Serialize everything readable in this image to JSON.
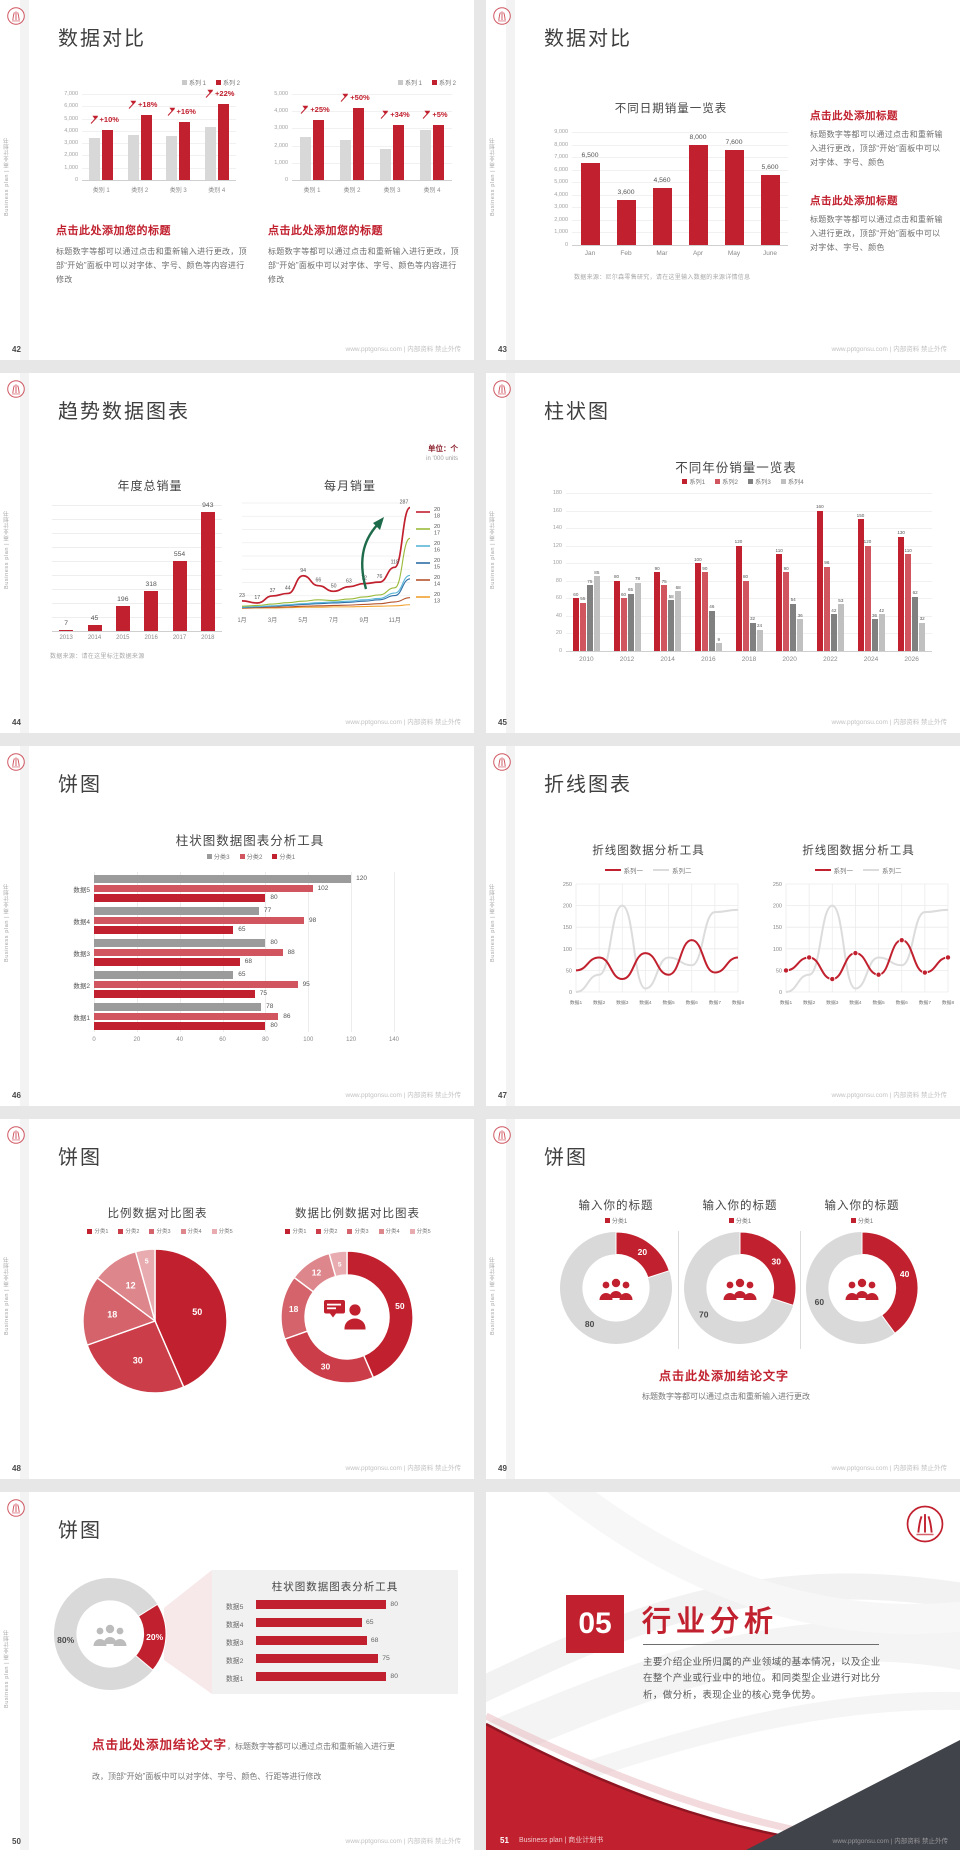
{
  "common": {
    "site": "www.pptgonsu.com | 内部资料 禁止外传",
    "sidebar": "Business plan | 商业计划书",
    "colors": {
      "red": "#c1202e",
      "red2": "#d0555e",
      "gray_bar": "#d8d8d8",
      "gray3": "#808080",
      "gray4": "#c0c0c0",
      "green_arrow": "#1d6b4a",
      "ring_gray": "#d9d9d9"
    }
  },
  "slides": {
    "s42": {
      "page_no": "42",
      "title": "数据对比",
      "chart_left": {
        "type": "pairbars",
        "legend": [
          "系列 1",
          "系列 2"
        ],
        "ymax": 7000,
        "yticks": [
          "7,000",
          "6,000",
          "5,000",
          "4,000",
          "3,000",
          "2,000",
          "1,000",
          "0"
        ],
        "categories": [
          "类别 1",
          "类别 2",
          "类别 3",
          "类别 4"
        ],
        "series": [
          {
            "name": "系列 1",
            "values": [
              3400,
              3700,
              3600,
              4300
            ]
          },
          {
            "name": "系列 2",
            "values": [
              4100,
              5300,
              4700,
              6200
            ]
          }
        ],
        "annotations": [
          "+10%",
          "+18%",
          "+16%",
          "+22%"
        ]
      },
      "chart_right": {
        "type": "pairbars",
        "legend": [
          "系列 1",
          "系列 2"
        ],
        "ymax": 5000,
        "yticks": [
          "5,000",
          "4,000",
          "3,000",
          "2,000",
          "1,000",
          "0"
        ],
        "categories": [
          "类别 1",
          "类别 2",
          "类别 3",
          "类别 4"
        ],
        "series": [
          {
            "name": "系列 1",
            "values": [
              2500,
              2300,
              1800,
              2900
            ]
          },
          {
            "name": "系列 2",
            "values": [
              3500,
              4200,
              3200,
              3200
            ]
          }
        ],
        "annotations": [
          "+25%",
          "+50%",
          "+34%",
          "+5%"
        ]
      },
      "block_left": {
        "heading": "点击此处添加您的标题",
        "body": "标题数字等都可以通过点击和重新输入进行更改，顶部“开始”面板中可以对字体、字号、颜色等内容进行修改"
      },
      "block_right": {
        "heading": "点击此处添加您的标题",
        "body": "标题数字等都可以通过点击和重新输入进行更改，顶部“开始”面板中可以对字体、字号、颜色等内容进行修改"
      }
    },
    "s43": {
      "page_no": "43",
      "title": "数据对比",
      "chart": {
        "type": "vbars",
        "title": "不同日期销量一览表",
        "ymax": 9000,
        "yticks": [
          "9,000",
          "8,000",
          "7,000",
          "6,000",
          "5,000",
          "4,000",
          "3,000",
          "2,000",
          "1,000",
          "0"
        ],
        "categories": [
          "Jan",
          "Feb",
          "Mar",
          "Apr",
          "May",
          "June"
        ],
        "values": [
          6500,
          3600,
          4560,
          8000,
          7600,
          5600
        ],
        "labels": [
          "6,500",
          "3,600",
          "4,560",
          "8,000",
          "7,600",
          "5,600"
        ]
      },
      "note": "数据来源：尼尔森零售研究，请在这里输入数据的来源详情信息",
      "blocks": [
        {
          "heading": "点击此处添加标题",
          "body": "标题数字等都可以通过点击和重新输入进行更改，顶部“开始”面板中可以对字体、字号、颜色"
        },
        {
          "heading": "点击此处添加标题",
          "body": "标题数字等都可以通过点击和重新输入进行更改，顶部“开始”面板中可以对字体、字号、颜色"
        }
      ]
    },
    "s44": {
      "page_no": "44",
      "title": "趋势数据图表",
      "unit_cn": "单位：个",
      "unit_en": "in '000 units",
      "chart_bar": {
        "type": "trendbars",
        "title": "年度总销量",
        "ymax": 1000,
        "categories": [
          "2013",
          "2014",
          "2015",
          "2016",
          "2017",
          "2018"
        ],
        "values": [
          7,
          45,
          196,
          318,
          554,
          943
        ]
      },
      "chart_line": {
        "type": "multiline",
        "title": "每月销量",
        "ymax": 300,
        "x_labels": [
          "1月",
          "3月",
          "5月",
          "7月",
          "9月",
          "11月"
        ],
        "point_labels": [
          "23",
          "17",
          "37",
          "44",
          "94",
          "66",
          "50",
          "63",
          "72",
          "76",
          "118",
          "287"
        ],
        "series": [
          {
            "name": "2018",
            "color": "#c1202e",
            "values": [
              23,
              17,
              37,
              44,
              94,
              66,
              50,
              63,
              72,
              76,
              118,
              287
            ]
          },
          {
            "name": "2017",
            "color": "#9aba3a",
            "values": [
              8,
              10,
              14,
              18,
              22,
              26,
              24,
              28,
              34,
              40,
              60,
              200
            ]
          },
          {
            "name": "2016",
            "color": "#58b6d8",
            "values": [
              5,
              7,
              9,
              12,
              15,
              18,
              20,
              22,
              26,
              30,
              45,
              95
            ]
          },
          {
            "name": "2015",
            "color": "#2e6ea6",
            "values": [
              4,
              6,
              8,
              10,
              13,
              15,
              17,
              19,
              22,
              26,
              38,
              85
            ]
          },
          {
            "name": "2014",
            "color": "#b5542f",
            "values": [
              3,
              4,
              5,
              6,
              8,
              9,
              10,
              11,
              13,
              15,
              20,
              32
            ]
          },
          {
            "name": "2013",
            "color": "#f0a230",
            "values": [
              2,
              3,
              3,
              4,
              5,
              5,
              6,
              6,
              7,
              8,
              9,
              12
            ]
          }
        ]
      },
      "note": "数据来源：请在这里标注数据来源"
    },
    "s45": {
      "page_no": "45",
      "title": "柱状图",
      "chart": {
        "type": "groupbars",
        "title": "不同年份销量一览表",
        "legend": [
          "系列1",
          "系列2",
          "系列3",
          "系列4"
        ],
        "legend_colors": [
          "#c1202e",
          "#d0555e",
          "#808080",
          "#c0c0c0"
        ],
        "ymax": 180,
        "yticks": [
          "180",
          "160",
          "140",
          "120",
          "100",
          "80",
          "60",
          "40",
          "20",
          "0"
        ],
        "categories": [
          "2010",
          "2012",
          "2014",
          "2016",
          "2018",
          "2020",
          "2022",
          "2024",
          "2026"
        ],
        "series": [
          {
            "name": "系列1",
            "values": [
              60,
              80,
              90,
              100,
              120,
              110,
              160,
              150,
              130
            ]
          },
          {
            "name": "系列2",
            "values": [
              55,
              60,
              75,
              90,
              80,
              90,
              96,
              120,
              110
            ]
          },
          {
            "name": "系列3",
            "values": [
              75,
              65,
              58,
              46,
              32,
              54,
              42,
              36,
              62
            ]
          },
          {
            "name": "系列4",
            "values": [
              85,
              78,
              68,
              9,
              24,
              36,
              53,
              42,
              32
            ]
          }
        ]
      }
    },
    "s46": {
      "page_no": "46",
      "title": "饼图",
      "chart": {
        "type": "hbars",
        "title": "柱状图数据图表分析工具",
        "legend": [
          "分类3",
          "分类2",
          "分类1"
        ],
        "legend_colors": [
          "#9b9b9b",
          "#d0555e",
          "#c1202e"
        ],
        "xmax": 140,
        "xticks": [
          "0",
          "20",
          "40",
          "60",
          "80",
          "100",
          "120",
          "140"
        ],
        "categories": [
          "数据5",
          "数据4",
          "数据3",
          "数据2",
          "数据1"
        ],
        "series": [
          {
            "name": "分类3",
            "color": "#9b9b9b",
            "values": [
              120,
              77,
              80,
              65,
              78
            ]
          },
          {
            "name": "分类2",
            "color": "#d0555e",
            "values": [
              102,
              98,
              88,
              95,
              86
            ]
          },
          {
            "name": "分类1",
            "color": "#c1202e",
            "values": [
              80,
              65,
              68,
              75,
              80
            ]
          }
        ]
      }
    },
    "s47": {
      "page_no": "47",
      "title": "折线图表",
      "chart_left": {
        "type": "lines",
        "title": "折线图数据分析工具",
        "markers": false,
        "ymax": 250,
        "yticks": [
          "250",
          "200",
          "150",
          "100",
          "50",
          "0"
        ],
        "categories": [
          "数据1",
          "数据2",
          "数据3",
          "数据4",
          "数据5",
          "数据6",
          "数据7",
          "数据8"
        ],
        "series": [
          {
            "name": "系列一",
            "color": "#c1202e",
            "values": [
              50,
              80,
              30,
              90,
              40,
              120,
              45,
              80
            ]
          },
          {
            "name": "系列二",
            "color": "#dcdcdc",
            "values": [
              0,
              40,
              200,
              8,
              80,
              62,
              185,
              190
            ]
          }
        ]
      },
      "chart_right": {
        "type": "lines",
        "title": "折线图数据分析工具",
        "markers": true,
        "ymax": 250,
        "yticks": [
          "250",
          "200",
          "150",
          "100",
          "50",
          "0"
        ],
        "categories": [
          "数据1",
          "数据2",
          "数据3",
          "数据4",
          "数据5",
          "数据6",
          "数据7",
          "数据8"
        ],
        "series": [
          {
            "name": "系列一",
            "color": "#c1202e",
            "values": [
              50,
              80,
              30,
              90,
              40,
              120,
              45,
              80
            ]
          },
          {
            "name": "系列二",
            "color": "#dcdcdc",
            "values": [
              0,
              40,
              200,
              8,
              80,
              62,
              185,
              190
            ]
          }
        ]
      }
    },
    "s48": {
      "page_no": "48",
      "title": "饼图",
      "pie": {
        "type": "pie",
        "title": "比例数据对比图表",
        "legend": [
          "分类1",
          "分类2",
          "分类3",
          "分类4",
          "分类5"
        ],
        "values": [
          50,
          30,
          18,
          12,
          5
        ],
        "colors": [
          "#c1202e",
          "#cb3e49",
          "#d4636b",
          "#dd868c",
          "#e8abaf"
        ]
      },
      "donut": {
        "type": "donutpie",
        "title": "数据比例数据对比图表",
        "legend": [
          "分类1",
          "分类2",
          "分类3",
          "分类4",
          "分类5"
        ],
        "values": [
          50,
          30,
          18,
          12,
          5
        ],
        "colors": [
          "#c1202e",
          "#cb3e49",
          "#d4636b",
          "#dd868c",
          "#e8abaf"
        ],
        "icon": "person-speech"
      }
    },
    "s49": {
      "page_no": "49",
      "title": "饼图",
      "donuts": [
        {
          "type": "donut2",
          "title": "输入你的标题",
          "legend": [
            "分类1"
          ],
          "values": [
            20,
            80
          ],
          "labels": [
            "20",
            "80"
          ],
          "start_angle": 0,
          "gray_label_angle": 216,
          "icon": "people",
          "icon_color": "#c1202e"
        },
        {
          "type": "donut2",
          "title": "输入你的标题",
          "legend": [
            "分类1"
          ],
          "values": [
            30,
            70
          ],
          "labels": [
            "30",
            "70"
          ],
          "start_angle": 0,
          "gray_label_angle": 234,
          "icon": "people",
          "icon_color": "#c1202e"
        },
        {
          "type": "donut2",
          "title": "输入你的标题",
          "legend": [
            "分类1"
          ],
          "values": [
            40,
            60
          ],
          "labels": [
            "40",
            "60"
          ],
          "start_angle": 0,
          "gray_label_angle": 252,
          "icon": "people",
          "icon_color": "#c1202e"
        }
      ],
      "conclusion": "点击此处添加结论文字",
      "conclusion_body": "标题数字等都可以通过点击和重新输入进行更改"
    },
    "s50": {
      "page_no": "50",
      "title": "饼图",
      "donut": {
        "type": "donut2",
        "values": [
          20,
          80
        ],
        "labels": [
          "20%",
          "80%"
        ],
        "start_angle": 58,
        "gray_label_angle": 262,
        "icon": "people",
        "icon_color": "#bcbcbc"
      },
      "panel": {
        "type": "panelbars",
        "title": "柱状图数据图表分析工具",
        "categories": [
          "数据5",
          "数据4",
          "数据3",
          "数据2",
          "数据1"
        ],
        "values": [
          80,
          65,
          68,
          75,
          80
        ],
        "labels": [
          "80",
          "65",
          "68",
          "75",
          "80"
        ],
        "xmax": 92
      },
      "conclusion": "点击此处添加结论文字",
      "conclusion_body": "，标题数字等都可以通过点击和重新输入进行更改，顶部“开始”面板中可以对字体、字号、颜色、行距等进行修改"
    },
    "s51": {
      "page_no": "51",
      "number": "05",
      "title": "行业分析",
      "body": "主要介绍企业所归属的产业领域的基本情况，以及企业在整个产业或行业中的地位。和同类型企业进行对比分析，做分析，表现企业的核心竞争优势。",
      "footer_left": "Business plan | 商业计划书"
    }
  }
}
